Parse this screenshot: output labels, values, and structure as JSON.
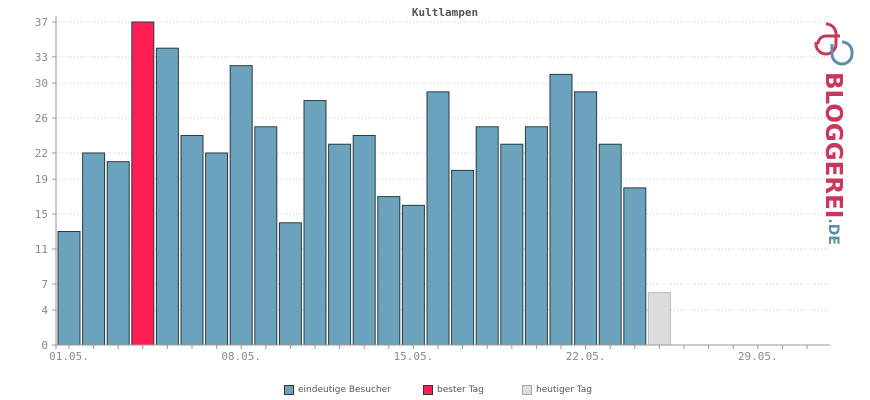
{
  "chart_data": {
    "type": "bar",
    "title": "Kultlampen",
    "x_tick_labels": [
      "01.05.",
      "08.05.",
      "15.05.",
      "22.05.",
      "29.05."
    ],
    "ylim": [
      0,
      37
    ],
    "y_ticks": [
      0,
      4,
      7,
      11,
      15,
      19,
      22,
      26,
      30,
      33,
      37
    ],
    "grid": true,
    "legend_position": "bottom",
    "categories": [
      "01.05.",
      "02.05.",
      "03.05.",
      "04.05.",
      "05.05.",
      "06.05.",
      "07.05.",
      "08.05.",
      "09.05.",
      "10.05.",
      "11.05.",
      "12.05.",
      "13.05.",
      "14.05.",
      "15.05.",
      "16.05.",
      "17.05.",
      "18.05.",
      "19.05.",
      "20.05.",
      "21.05.",
      "22.05.",
      "23.05.",
      "24.05.",
      "25.05.",
      "26.05.",
      "27.05.",
      "28.05.",
      "29.05.",
      "30.05.",
      "31.05."
    ],
    "series": [
      {
        "name": "eindeutige Besucher",
        "color": "#6aa3bb",
        "values": [
          13,
          22,
          21,
          37,
          34,
          24,
          22,
          32,
          25,
          14,
          28,
          23,
          24,
          17,
          16,
          29,
          20,
          25,
          23,
          25,
          31,
          29,
          23,
          18,
          6,
          0,
          0,
          0,
          0,
          0,
          0
        ]
      }
    ],
    "best_day_index": 3,
    "today_index": 24
  },
  "legend": [
    {
      "label": "eindeutige Besucher",
      "color": "#6aa3bb"
    },
    {
      "label": "bester Tag",
      "color": "#ff1f55"
    },
    {
      "label": "heutiger Tag",
      "color": "#dddddd"
    }
  ],
  "logo": {
    "brand": "BLOGGEREI",
    "tld": ".DE",
    "brand_color": "#c8385a",
    "tld_color": "#5b8fa8"
  },
  "colors": {
    "bar": "#6aa3bb",
    "best": "#ff1f55",
    "today": "#dddddd",
    "bar_edge": "#2b3a42",
    "axis": "#999999",
    "grid": "#cccccc"
  }
}
